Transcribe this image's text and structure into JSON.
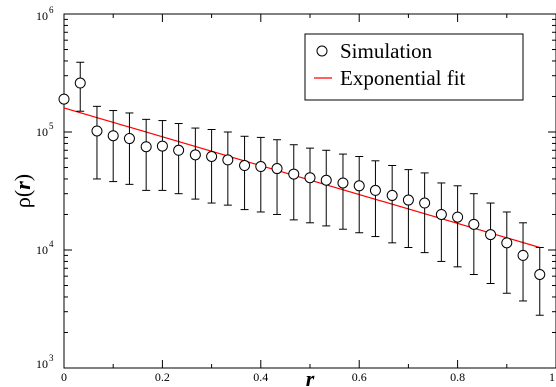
{
  "chart_data": {
    "type": "scatter",
    "xlim": [
      0,
      1
    ],
    "ylim": [
      1000,
      1000000
    ],
    "yscale": "log",
    "grid": false,
    "legend_position": "top-right",
    "xlabel": "r",
    "ylabel_prefix": "ρ(",
    "ylabel_var": "r",
    "ylabel_suffix": ")",
    "x_ticks": [
      {
        "value": 0,
        "label": "0"
      },
      {
        "value": 0.2,
        "label": "0.2"
      },
      {
        "value": 0.4,
        "label": "0.4"
      },
      {
        "value": 0.6,
        "label": "0.6"
      },
      {
        "value": 0.8,
        "label": "0.8"
      },
      {
        "value": 1,
        "label": "1"
      }
    ],
    "y_ticks": [
      {
        "value": 1000,
        "base": "10",
        "exp": "3"
      },
      {
        "value": 10000,
        "base": "10",
        "exp": "4"
      },
      {
        "value": 100000,
        "base": "10",
        "exp": "5"
      },
      {
        "value": 1000000,
        "base": "10",
        "exp": "6"
      }
    ],
    "series": [
      {
        "name": "Simulation",
        "marker": "open-circle",
        "color": "#000000",
        "points": [
          {
            "x": 0.0,
            "y": 190000,
            "err_low": null,
            "err_high": null
          },
          {
            "x": 0.033,
            "y": 260000,
            "err_low": 150000,
            "err_high": 390000
          },
          {
            "x": 0.067,
            "y": 102000,
            "err_low": 40000,
            "err_high": 165000
          },
          {
            "x": 0.1,
            "y": 93000,
            "err_low": 38000,
            "err_high": 152000
          },
          {
            "x": 0.133,
            "y": 88000,
            "err_low": 36000,
            "err_high": 145000
          },
          {
            "x": 0.167,
            "y": 75000,
            "err_low": 32000,
            "err_high": 128000
          },
          {
            "x": 0.2,
            "y": 76000,
            "err_low": 32000,
            "err_high": 125000
          },
          {
            "x": 0.233,
            "y": 70000,
            "err_low": 30000,
            "err_high": 118000
          },
          {
            "x": 0.267,
            "y": 64000,
            "err_low": 27000,
            "err_high": 108000
          },
          {
            "x": 0.3,
            "y": 62000,
            "err_low": 25000,
            "err_high": 105000
          },
          {
            "x": 0.333,
            "y": 58000,
            "err_low": 24000,
            "err_high": 100000
          },
          {
            "x": 0.367,
            "y": 52000,
            "err_low": 22000,
            "err_high": 92000
          },
          {
            "x": 0.4,
            "y": 51000,
            "err_low": 21000,
            "err_high": 90000
          },
          {
            "x": 0.433,
            "y": 49000,
            "err_low": 20000,
            "err_high": 86000
          },
          {
            "x": 0.467,
            "y": 44000,
            "err_low": 18000,
            "err_high": 78000
          },
          {
            "x": 0.5,
            "y": 41000,
            "err_low": 17000,
            "err_high": 73000
          },
          {
            "x": 0.533,
            "y": 39000,
            "err_low": 16000,
            "err_high": 70000
          },
          {
            "x": 0.567,
            "y": 37000,
            "err_low": 15000,
            "err_high": 65000
          },
          {
            "x": 0.6,
            "y": 35000,
            "err_low": 14000,
            "err_high": 62000
          },
          {
            "x": 0.633,
            "y": 32000,
            "err_low": 13000,
            "err_high": 57000
          },
          {
            "x": 0.667,
            "y": 29000,
            "err_low": 11500,
            "err_high": 52000
          },
          {
            "x": 0.7,
            "y": 26500,
            "err_low": 10500,
            "err_high": 48000
          },
          {
            "x": 0.733,
            "y": 25000,
            "err_low": 9500,
            "err_high": 45000
          },
          {
            "x": 0.767,
            "y": 20000,
            "err_low": 8000,
            "err_high": 37000
          },
          {
            "x": 0.8,
            "y": 19000,
            "err_low": 7200,
            "err_high": 35000
          },
          {
            "x": 0.833,
            "y": 16500,
            "err_low": 6200,
            "err_high": 30000
          },
          {
            "x": 0.867,
            "y": 13500,
            "err_low": 5200,
            "err_high": 25000
          },
          {
            "x": 0.9,
            "y": 11500,
            "err_low": 4300,
            "err_high": 21000
          },
          {
            "x": 0.933,
            "y": 9000,
            "err_low": 3700,
            "err_high": 17000
          },
          {
            "x": 0.967,
            "y": 6200,
            "err_low": 2800,
            "err_high": 10500
          }
        ]
      },
      {
        "name": "Exponential fit",
        "line": true,
        "color": "#ff0000",
        "x": [
          0,
          0.967
        ],
        "y": [
          160000,
          10500
        ]
      }
    ]
  }
}
